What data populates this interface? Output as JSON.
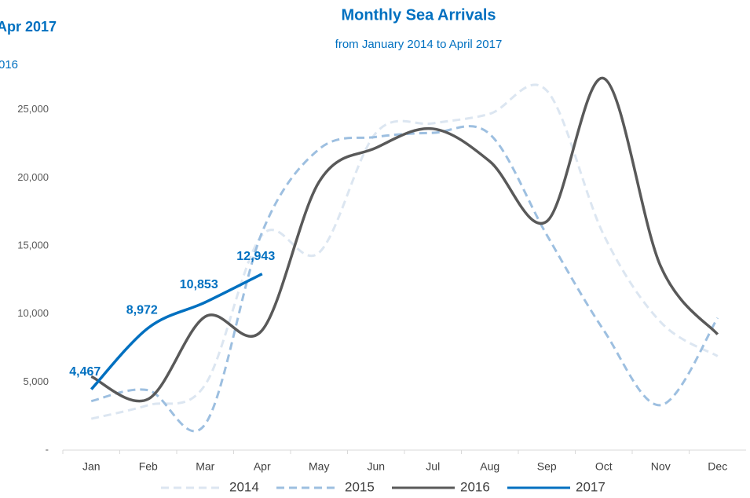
{
  "chart_data": {
    "type": "line",
    "title": "Monthly Sea Arrivals",
    "subtitle": "from January 2014 to April 2017",
    "side_texts": [
      "Apr 2017",
      "016"
    ],
    "categories": [
      "Jan",
      "Feb",
      "Mar",
      "Apr",
      "May",
      "Jun",
      "Jul",
      "Aug",
      "Sep",
      "Oct",
      "Nov",
      "Dec"
    ],
    "series": [
      {
        "name": "2014",
        "color": "#dce6f1",
        "dashed": true,
        "values": [
          2300,
          3300,
          4800,
          15800,
          14500,
          23300,
          24000,
          24700,
          26400,
          15800,
          9400,
          6900
        ]
      },
      {
        "name": "2015",
        "color": "#9dbfe0",
        "dashed": true,
        "values": [
          3600,
          4400,
          1900,
          16000,
          22100,
          23000,
          23300,
          23200,
          15800,
          8800,
          3300,
          9700
        ]
      },
      {
        "name": "2016",
        "color": "#595959",
        "dashed": false,
        "values": [
          5400,
          3750,
          9800,
          8800,
          19700,
          22200,
          23600,
          21200,
          16800,
          27300,
          13500,
          8500
        ]
      },
      {
        "name": "2017",
        "color": "#0070c0",
        "dashed": false,
        "values": [
          4467,
          8972,
          10853,
          12943,
          null,
          null,
          null,
          null,
          null,
          null,
          null,
          null
        ],
        "value_labels": [
          "4,467",
          "8,972",
          "10,853",
          "12,943",
          null,
          null,
          null,
          null,
          null,
          null,
          null,
          null
        ]
      }
    ],
    "ylim": [
      0,
      30000
    ],
    "yticks": [
      {
        "value": 0,
        "label": "-"
      },
      {
        "value": 5000,
        "label": "5,000"
      },
      {
        "value": 10000,
        "label": "10,000"
      },
      {
        "value": 15000,
        "label": "15,000"
      },
      {
        "value": 20000,
        "label": "20,000"
      },
      {
        "value": 25000,
        "label": "25,000"
      }
    ],
    "grid": false
  }
}
